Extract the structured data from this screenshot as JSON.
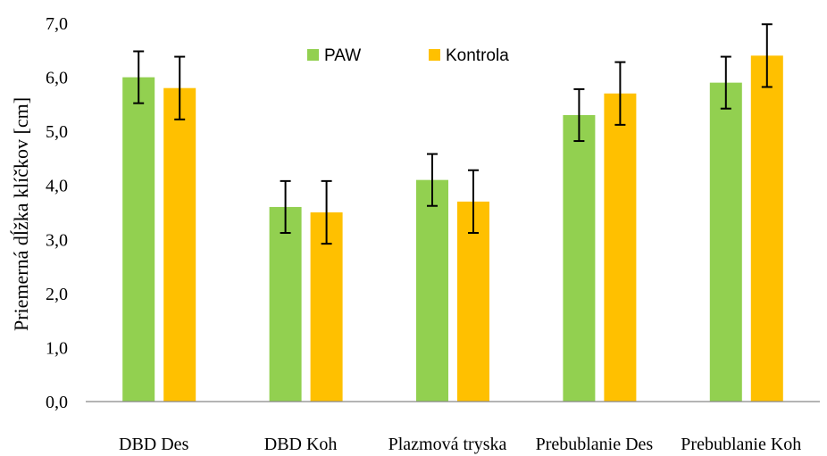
{
  "chart_data": {
    "type": "bar",
    "title": "",
    "xlabel": "",
    "ylabel": "Priemerná dĺžka klíčkov [cm]",
    "ylim": [
      0,
      7
    ],
    "yticks": [
      "0,0",
      "1,0",
      "2,0",
      "3,0",
      "4,0",
      "5,0",
      "6,0",
      "7,0"
    ],
    "categories": [
      "DBD Des",
      "DBD Koh",
      "Plazmová tryska",
      "Prebublanie Des",
      "Prebublanie Koh"
    ],
    "series": [
      {
        "name": "PAW",
        "color": "#92d050",
        "values": [
          6.0,
          3.6,
          4.1,
          5.3,
          5.9
        ],
        "errors": [
          0.48,
          0.48,
          0.48,
          0.48,
          0.48
        ]
      },
      {
        "name": "Kontrola",
        "color": "#ffc000",
        "values": [
          5.8,
          3.5,
          3.7,
          5.7,
          6.4
        ],
        "errors": [
          0.58,
          0.58,
          0.58,
          0.58,
          0.58
        ]
      }
    ],
    "grid": false,
    "legend_position": "top-center"
  }
}
